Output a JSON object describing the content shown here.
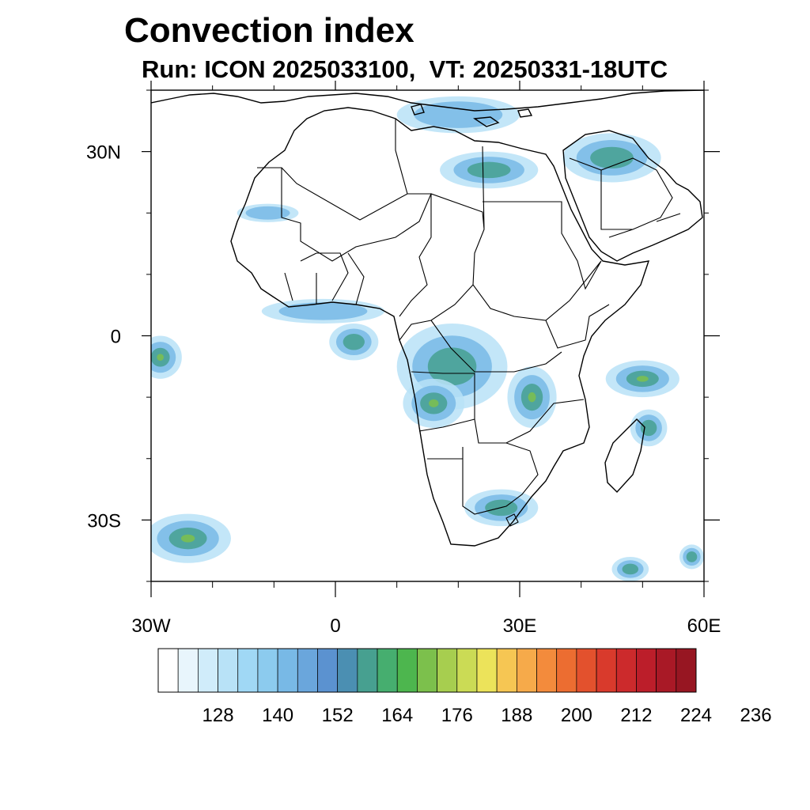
{
  "title": "Convection index",
  "subtitle": "Run: ICON 2025033100,  VT: 20250331-18UTC",
  "map": {
    "lon_range": [
      -30,
      60
    ],
    "lat_range": [
      -40,
      40
    ],
    "lat_ticks": [
      {
        "value": 30,
        "label": "30N"
      },
      {
        "value": 0,
        "label": "0"
      },
      {
        "value": -30,
        "label": "30S"
      }
    ],
    "lon_ticks": [
      {
        "value": -30,
        "label": "30W"
      },
      {
        "value": 0,
        "label": "0"
      },
      {
        "value": 30,
        "label": "30E"
      },
      {
        "value": 60,
        "label": "60E"
      }
    ],
    "minor_lat_ticks": [
      40,
      20,
      10,
      -10,
      -20,
      -40
    ],
    "minor_lon_ticks": [
      -20,
      -10,
      10,
      20,
      40,
      50
    ]
  },
  "colorbar": {
    "colors": [
      "#ffffff",
      "#e8f5fc",
      "#d0ecfa",
      "#b8e2f7",
      "#a0d8f5",
      "#8ccbee",
      "#78b9e6",
      "#6aa6dc",
      "#5b92d0",
      "#4b8fb2",
      "#47a090",
      "#46ae6f",
      "#4db64e",
      "#7cc04c",
      "#a7ce4f",
      "#cbdb55",
      "#ece35a",
      "#f6c653",
      "#f6aa4a",
      "#f38b3c",
      "#ec6d31",
      "#e3512d",
      "#d93a2c",
      "#cc2a2c",
      "#bc1e2a",
      "#a91926",
      "#971622"
    ],
    "labels": [
      "128",
      "140",
      "152",
      "164",
      "176",
      "188",
      "200",
      "212",
      "224",
      "236"
    ],
    "levels": [
      128,
      140,
      152,
      164,
      176,
      188,
      200,
      212,
      224,
      236
    ]
  },
  "convection_areas": [
    {
      "name": "atlantic-equatorial",
      "lon": -28.5,
      "lat": -3.5,
      "rx": 3.5,
      "ry": 3.5,
      "level": 3
    },
    {
      "name": "south-atlantic-front",
      "lon": -24,
      "lat": -33,
      "rx": 7,
      "ry": 4,
      "level": 3
    },
    {
      "name": "congo-basin",
      "lon": 19,
      "lat": -5,
      "rx": 9,
      "ry": 7,
      "level": 1
    },
    {
      "name": "angola",
      "lon": 16,
      "lat": -11,
      "rx": 5,
      "ry": 4,
      "level": 2
    },
    {
      "name": "lake-region",
      "lon": 32,
      "lat": -10,
      "rx": 4,
      "ry": 5,
      "level": 2
    },
    {
      "name": "indian-ocean-east",
      "lon": 50,
      "lat": -7,
      "rx": 6,
      "ry": 3,
      "level": 2
    },
    {
      "name": "madagascar-east",
      "lon": 51,
      "lat": -15,
      "rx": 3,
      "ry": 3,
      "level": 1
    },
    {
      "name": "south-africa",
      "lon": 27,
      "lat": -28,
      "rx": 6,
      "ry": 3,
      "level": 1
    },
    {
      "name": "west-africa-coast",
      "lon": -2,
      "lat": 4,
      "rx": 10,
      "ry": 2,
      "level": 0
    },
    {
      "name": "gulf-of-guinea",
      "lon": 3,
      "lat": -1,
      "rx": 4,
      "ry": 3,
      "level": 1
    },
    {
      "name": "egypt-band",
      "lon": 25,
      "lat": 27,
      "rx": 8,
      "ry": 3,
      "level": 1
    },
    {
      "name": "arabia-north",
      "lon": 45,
      "lat": 29,
      "rx": 8,
      "ry": 4,
      "level": 1
    },
    {
      "name": "mediterranean",
      "lon": 20,
      "lat": 36,
      "rx": 10,
      "ry": 3,
      "level": 0
    },
    {
      "name": "western-sahara",
      "lon": -11,
      "lat": 20,
      "rx": 5,
      "ry": 1.5,
      "level": 0
    },
    {
      "name": "indian-ocean-south",
      "lon": 48,
      "lat": -38,
      "rx": 3,
      "ry": 2,
      "level": 1
    },
    {
      "name": "indian-ocean-east-far",
      "lon": 58,
      "lat": -36,
      "rx": 2,
      "ry": 2,
      "level": 1
    }
  ]
}
